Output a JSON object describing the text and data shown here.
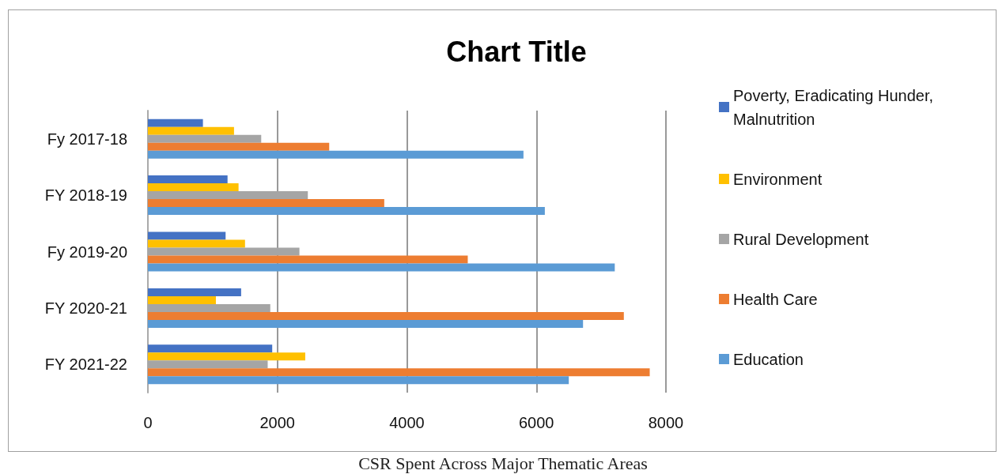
{
  "chart_data": {
    "type": "bar",
    "orientation": "horizontal",
    "title": "Chart Title",
    "categories": [
      "Fy 2017-18",
      "FY 2018-19",
      "Fy 2019-20",
      "FY 2020-21",
      "FY 2021-22"
    ],
    "series": [
      {
        "name": "Poverty, Eradicating Hunder, Malnutrition",
        "color": "#4472c4",
        "values": [
          850,
          1230,
          1200,
          1440,
          1920
        ]
      },
      {
        "name": "Environment",
        "color": "#ffc000",
        "values": [
          1330,
          1400,
          1500,
          1050,
          2430
        ]
      },
      {
        "name": "Rural Development",
        "color": "#a5a5a5",
        "values": [
          1750,
          2470,
          2340,
          1890,
          1850
        ]
      },
      {
        "name": "Health Care",
        "color": "#ed7d31",
        "values": [
          2800,
          3650,
          4940,
          7350,
          7750
        ]
      },
      {
        "name": "Education",
        "color": "#5b9bd5",
        "values": [
          5800,
          6130,
          7210,
          6720,
          6500
        ]
      }
    ],
    "xlim": [
      0,
      8000
    ],
    "xticks": [
      0,
      2000,
      4000,
      6000,
      8000
    ],
    "grid": "x",
    "legend": "right",
    "annotations": [
      "CSR Spent Across Major Thematic Areas"
    ]
  }
}
